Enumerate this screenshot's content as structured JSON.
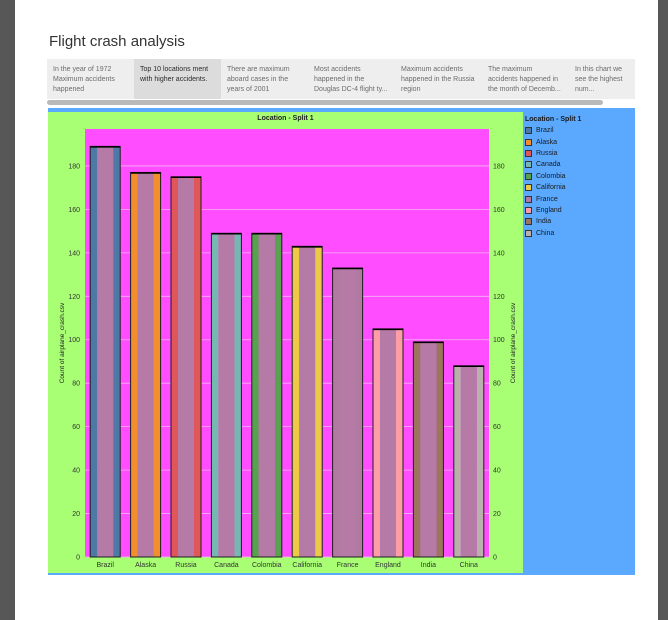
{
  "page": {
    "title": "Flight crash analysis"
  },
  "story_points": [
    "In the year of 1972 Maximum accidents happened",
    "Top 10 locations ment with higher accidents.",
    "There are maximum aboard cases in the years of 2001",
    "Most accidents happened in the Douglas DC-4 flight ty...",
    "Maximum accidents happened in the Russia region",
    "The maximum accidents happened in the month of Decemb...",
    "In this chart we see the highest num..."
  ],
  "active_story_point": 1,
  "legend": {
    "title": "Location - Split 1",
    "items": [
      {
        "label": "Brazil",
        "color": "#4e79a7"
      },
      {
        "label": "Alaska",
        "color": "#f28e2b"
      },
      {
        "label": "Russia",
        "color": "#e15759"
      },
      {
        "label": "Canada",
        "color": "#76b7b2"
      },
      {
        "label": "Colombia",
        "color": "#59a14f"
      },
      {
        "label": "California",
        "color": "#edc948"
      },
      {
        "label": "France",
        "color": "#b07aa1"
      },
      {
        "label": "England",
        "color": "#ff9da7"
      },
      {
        "label": "India",
        "color": "#9c755f"
      },
      {
        "label": "China",
        "color": "#bab0ac"
      }
    ]
  },
  "chart_data": {
    "type": "bar",
    "title": "Location - Split 1",
    "categories": [
      "Brazil",
      "Alaska",
      "Russia",
      "Canada",
      "Colombia",
      "California",
      "France",
      "England",
      "India",
      "China"
    ],
    "values": [
      189,
      177,
      175,
      149,
      149,
      143,
      133,
      105,
      99,
      88
    ],
    "ylabel": "Count of airplane_crash.csv",
    "ylabel_right": "Count of airplane_crash.csv",
    "ylim": [
      0,
      197
    ],
    "yticks": [
      0,
      20,
      40,
      60,
      80,
      100,
      120,
      140,
      160,
      180
    ],
    "grid": true,
    "plot_background": "#ff4dff",
    "bar_fill": "#b57aa6",
    "colors": [
      "#4e79a7",
      "#f28e2b",
      "#e15759",
      "#76b7b2",
      "#59a14f",
      "#edc948",
      "#b07aa1",
      "#ff9da7",
      "#9c755f",
      "#bab0ac"
    ]
  }
}
